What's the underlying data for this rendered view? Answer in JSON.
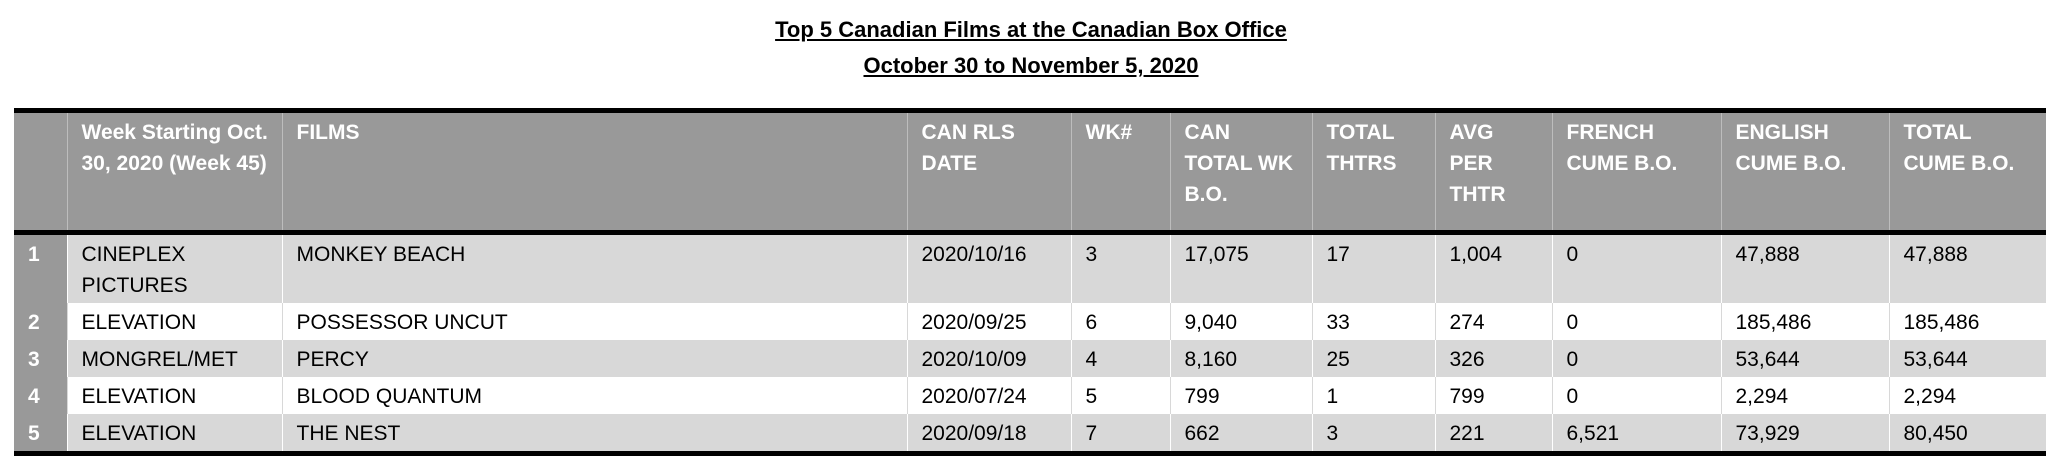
{
  "title": "Top 5 Canadian Films at the Canadian Box Office",
  "subtitle": "October 30 to November 5, 2020",
  "columns": [
    "",
    "Week Starting Oct. 30, 2020 (Week  45)",
    "FILMS",
    "CAN RLS DATE",
    "WK#",
    "CAN TOTAL WK B.O.",
    "TOTAL THTRS",
    "AVG PER THTR",
    "FRENCH CUME B.O.",
    "ENGLISH CUME B.O.",
    "TOTAL CUME B.O."
  ],
  "rows": [
    [
      "1",
      "CINEPLEX PICTURES",
      "MONKEY BEACH",
      "2020/10/16",
      "3",
      "17,075",
      "17",
      "1,004",
      "0",
      "47,888",
      "47,888"
    ],
    [
      "2",
      "ELEVATION",
      "POSSESSOR UNCUT",
      "2020/09/25",
      "6",
      "9,040",
      "33",
      "274",
      "0",
      "185,486",
      "185,486"
    ],
    [
      "3",
      "MONGREL/MET",
      "PERCY",
      "2020/10/09",
      "4",
      "8,160",
      "25",
      "326",
      "0",
      "53,644",
      "53,644"
    ],
    [
      "4",
      "ELEVATION",
      "BLOOD QUANTUM",
      "2020/07/24",
      "5",
      "799",
      "1",
      "799",
      "0",
      "2,294",
      "2,294"
    ],
    [
      "5",
      "ELEVATION",
      "THE NEST",
      "2020/09/18",
      "7",
      "662",
      "3",
      "221",
      "6,521",
      "73,929",
      "80,450"
    ]
  ],
  "colors": {
    "header_bg": "#999999",
    "shaded_row": "#d8d8d8",
    "rank_bg": "#999999"
  }
}
